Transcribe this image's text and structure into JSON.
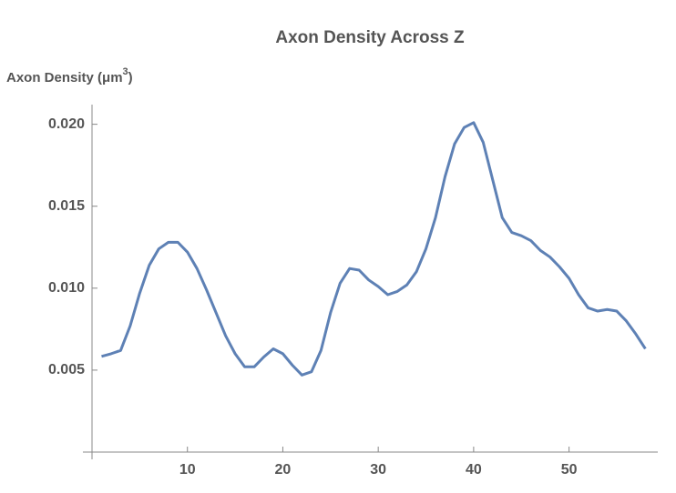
{
  "chart_data": {
    "type": "line",
    "title": "Axon Density Across Z",
    "y_label": [
      "Axon Density (μm",
      "3",
      ")"
    ],
    "x": [
      1,
      2,
      3,
      4,
      5,
      6,
      7,
      8,
      9,
      10,
      11,
      12,
      13,
      14,
      15,
      16,
      17,
      18,
      19,
      20,
      21,
      22,
      23,
      24,
      25,
      26,
      27,
      28,
      29,
      30,
      31,
      32,
      33,
      34,
      35,
      36,
      37,
      38,
      39,
      40,
      41,
      42,
      43,
      44,
      45,
      46,
      47,
      48,
      49,
      50,
      51,
      52,
      53,
      54,
      55,
      56,
      57,
      58
    ],
    "series": [
      {
        "color": "#5e81b5",
        "values": [
          0.00584,
          0.006,
          0.0062,
          0.0077,
          0.0097,
          0.0114,
          0.0124,
          0.0128,
          0.0128,
          0.0122,
          0.0112,
          0.0099,
          0.0085,
          0.0071,
          0.006,
          0.0052,
          0.0052,
          0.0058,
          0.0063,
          0.006,
          0.0053,
          0.0047,
          0.0049,
          0.0062,
          0.0085,
          0.0103,
          0.0112,
          0.0111,
          0.0105,
          0.0101,
          0.0096,
          0.0098,
          0.0102,
          0.011,
          0.0124,
          0.0143,
          0.0168,
          0.0188,
          0.0198,
          0.0201,
          0.0189,
          0.0166,
          0.0143,
          0.0134,
          0.0132,
          0.0129,
          0.0123,
          0.0119,
          0.0113,
          0.0106,
          0.0096,
          0.0088,
          0.0086,
          0.0087,
          0.0086,
          0.008,
          0.0072,
          0.0063
        ]
      }
    ],
    "xlim": [
      0,
      59.3
    ],
    "xticks": [
      10,
      20,
      30,
      40,
      50
    ],
    "ylim": [
      0,
      0.0212
    ],
    "yticks": [
      0.005,
      {
        "value": 0.01,
        "label": "0.010"
      },
      0.015,
      {
        "value": 0.02,
        "label": "0.020"
      }
    ],
    "grid": false
  }
}
